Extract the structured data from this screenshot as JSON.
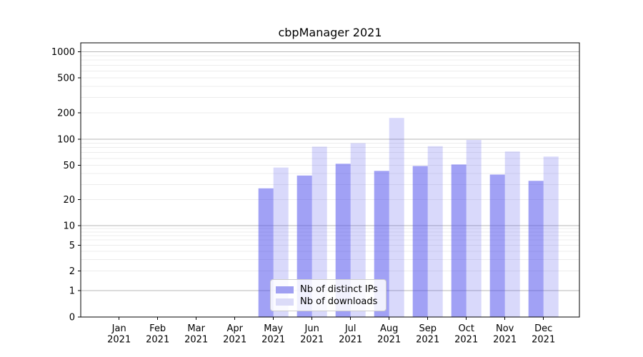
{
  "title": "cbpManager 2021",
  "legend": {
    "items": [
      {
        "label": "Nb of distinct IPs",
        "swatch_color": "#a0a0f2"
      },
      {
        "label": "Nb of downloads",
        "swatch_color": "#dbdbf8"
      }
    ]
  },
  "colors": {
    "background": "#ffffff",
    "bar_base": "#5353ec",
    "grid_major": "#b7b7b7",
    "grid_minor": "#ececec",
    "spine": "#000000",
    "text": "#000000"
  },
  "chart_data": {
    "type": "bar",
    "title": "cbpManager 2021",
    "categories": [
      "Jan 2021",
      "Feb 2021",
      "Mar 2021",
      "Apr 2021",
      "May 2021",
      "Jun 2021",
      "Jul 2021",
      "Aug 2021",
      "Sep 2021",
      "Oct 2021",
      "Nov 2021",
      "Dec 2021"
    ],
    "series": [
      {
        "name": "Nb of distinct IPs",
        "values": [
          0,
          0,
          0,
          0,
          27,
          38,
          52,
          43,
          49,
          51,
          39,
          33
        ],
        "base_color": "#5353ec",
        "fill_opacity": 0.55
      },
      {
        "name": "Nb of downloads",
        "values": [
          0,
          0,
          0,
          0,
          47,
          82,
          90,
          175,
          83,
          98,
          72,
          63
        ],
        "base_color": "#5353ec",
        "fill_opacity": 0.22
      }
    ],
    "xlabel": "",
    "ylabel": "",
    "yscale": "symlog",
    "yticks": [
      0,
      1,
      2,
      5,
      10,
      20,
      50,
      100,
      200,
      500,
      1000
    ],
    "ylim": [
      0,
      1000
    ],
    "grid": true,
    "legend_position": "lower center"
  }
}
